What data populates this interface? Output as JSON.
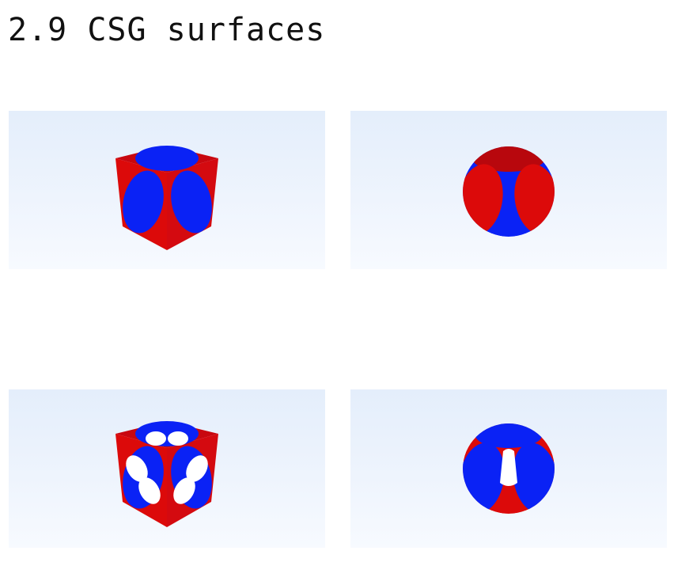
{
  "page": {
    "title": "2.9 CSG surfaces"
  },
  "colors": {
    "red": "#dc0a0a",
    "red_dark": "#b8070d",
    "blue": "#0a22f5",
    "blue_dark": "#0818d0",
    "panel_top": "#e4eefb",
    "panel_bottom": "#f7faff"
  },
  "panels": [
    {
      "icon": "csg-cube-minus-sphere-icon"
    },
    {
      "icon": "csg-sphere-minus-cube-icon"
    },
    {
      "icon": "csg-cube-minus-cylinders-icon"
    },
    {
      "icon": "csg-sphere-minus-cylinders-icon"
    }
  ]
}
